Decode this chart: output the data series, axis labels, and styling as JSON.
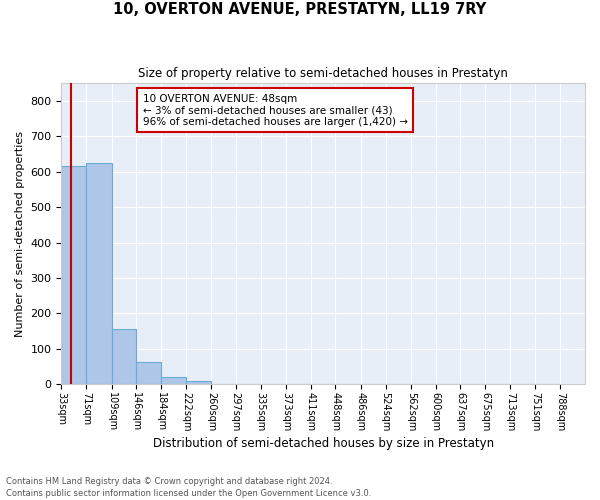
{
  "title1": "10, OVERTON AVENUE, PRESTATYN, LL19 7RY",
  "title2": "Size of property relative to semi-detached houses in Prestatyn",
  "xlabel": "Distribution of semi-detached houses by size in Prestatyn",
  "ylabel": "Number of semi-detached properties",
  "footnote": "Contains HM Land Registry data © Crown copyright and database right 2024.\nContains public sector information licensed under the Open Government Licence v3.0.",
  "bin_labels": [
    "33sqm",
    "71sqm",
    "109sqm",
    "146sqm",
    "184sqm",
    "222sqm",
    "260sqm",
    "297sqm",
    "335sqm",
    "373sqm",
    "411sqm",
    "448sqm",
    "486sqm",
    "524sqm",
    "562sqm",
    "600sqm",
    "637sqm",
    "675sqm",
    "713sqm",
    "751sqm",
    "788sqm"
  ],
  "bar_heights": [
    615,
    625,
    157,
    63,
    20,
    10,
    0,
    0,
    0,
    0,
    0,
    0,
    0,
    0,
    0,
    0,
    0,
    0,
    0,
    0
  ],
  "bar_color": "#aec6e8",
  "bar_edge_color": "#6aaad4",
  "bg_color": "#e8eef8",
  "grid_color": "#ffffff",
  "vline_color": "#cc0000",
  "annotation_text": "10 OVERTON AVENUE: 48sqm\n← 3% of semi-detached houses are smaller (43)\n96% of semi-detached houses are larger (1,420) →",
  "annotation_box_color": "#ffffff",
  "annotation_box_edge": "#cc0000",
  "ylim": [
    0,
    850
  ],
  "yticks": [
    0,
    100,
    200,
    300,
    400,
    500,
    600,
    700,
    800
  ],
  "bin_edges": [
    33,
    71,
    109,
    146,
    184,
    222,
    260,
    297,
    335,
    373,
    411,
    448,
    486,
    524,
    562,
    600,
    637,
    675,
    713,
    751,
    788
  ],
  "property_size": 48
}
